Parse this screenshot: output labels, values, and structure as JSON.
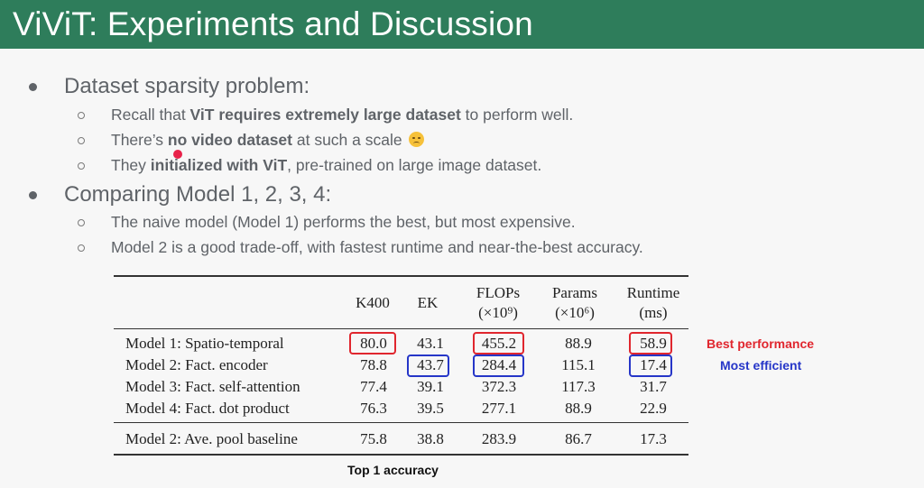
{
  "title": "ViViT: Experiments and Discussion",
  "bullets": [
    {
      "text": "Dataset sparsity problem:",
      "subs": [
        {
          "parts": [
            {
              "t": "Recall that ",
              "b": false
            },
            {
              "t": "ViT requires extremely large dataset",
              "b": true
            },
            {
              "t": " to perform well.",
              "b": false
            }
          ]
        },
        {
          "parts": [
            {
              "t": "There’s ",
              "b": false
            },
            {
              "t": "no video dataset",
              "b": true
            },
            {
              "t": " at such a scale ",
              "b": false
            }
          ]
        },
        {
          "parts": [
            {
              "t": "They ",
              "b": false
            },
            {
              "t": "initialized with ViT",
              "b": true
            },
            {
              "t": ", pre-trained on large image dataset.",
              "b": false
            }
          ]
        }
      ]
    },
    {
      "text": "Comparing Model 1, 2, 3, 4:",
      "subs": [
        {
          "parts": [
            {
              "t": "The naive model (Model 1) performs the best, but most expensive.",
              "b": false
            }
          ]
        },
        {
          "parts": [
            {
              "t": "Model 2 is a good trade-off, with fastest runtime and near-the-best accuracy.",
              "b": false
            }
          ]
        }
      ]
    }
  ],
  "table": {
    "headers": {
      "k400": "K400",
      "ek": "EK",
      "flops": "FLOPs",
      "flops_unit": "(×10⁹)",
      "params": "Params",
      "params_unit": "(×10⁶)",
      "runtime": "Runtime",
      "runtime_unit": "(ms)"
    },
    "rows": [
      [
        "Model 1: Spatio-temporal",
        "80.0",
        "43.1",
        "455.2",
        "88.9",
        "58.9"
      ],
      [
        "Model 2: Fact. encoder",
        "78.8",
        "43.7",
        "284.4",
        "115.1",
        "17.4"
      ],
      [
        "Model 3: Fact. self-attention",
        "77.4",
        "39.1",
        "372.3",
        "117.3",
        "31.7"
      ],
      [
        "Model 4: Fact. dot product",
        "76.3",
        "39.5",
        "277.1",
        "88.9",
        "22.9"
      ]
    ],
    "baseline": [
      "Model 2: Ave. pool baseline",
      "75.8",
      "38.8",
      "283.9",
      "86.7",
      "17.3"
    ]
  },
  "annotations": {
    "best": "Best performance",
    "best_color": "#e0262e",
    "efficient": "Most efficient",
    "efficient_color": "#2636c8",
    "caption": "Top 1 accuracy"
  },
  "colors": {
    "title_bar": "#2e7d5b"
  }
}
